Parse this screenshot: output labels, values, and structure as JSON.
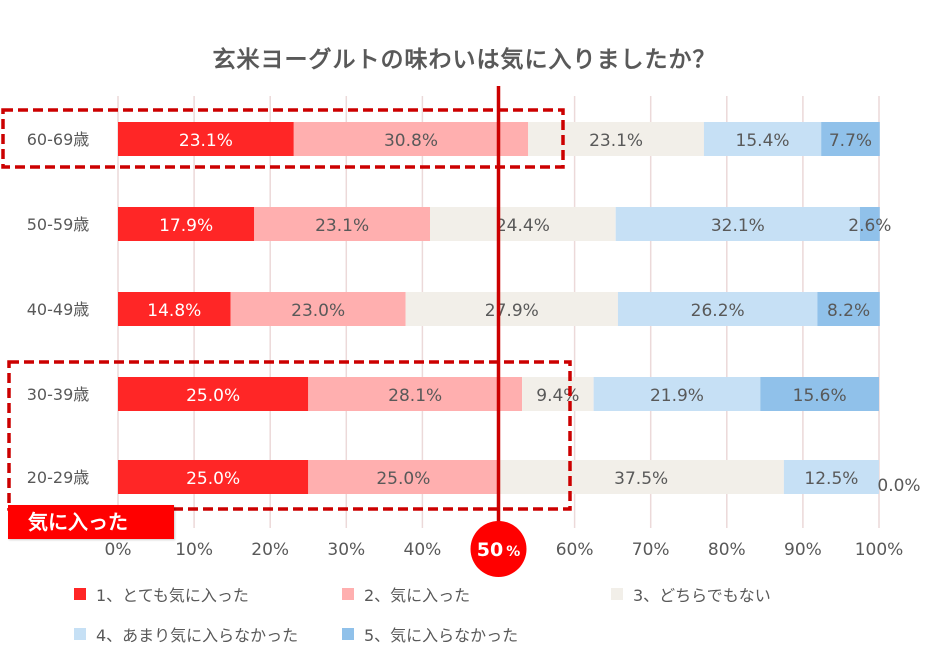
{
  "chart_data": {
    "type": "bar",
    "orientation": "horizontal",
    "stacked": true,
    "title": "玄米ヨーグルトの味わいは気に入りましたか？",
    "categories": [
      "60-69歳",
      "50-59歳",
      "40-49歳",
      "30-39歳",
      "20-29歳"
    ],
    "series": [
      {
        "name": "1、とても気に入った",
        "color": "#ff2626",
        "label_color": "#ffffff",
        "values": [
          23.1,
          17.9,
          14.8,
          25.0,
          25.0
        ],
        "labels": [
          "23.1%",
          "17.9%",
          "14.8%",
          "25.0%",
          "25.0%"
        ]
      },
      {
        "name": "2、気に入った",
        "color": "#ffafaf",
        "label_color": "#595959",
        "values": [
          30.8,
          23.1,
          23.0,
          28.1,
          25.0
        ],
        "labels": [
          "30.8%",
          "23.1%",
          "23.0%",
          "28.1%",
          "25.0%"
        ]
      },
      {
        "name": "3、どちらでもない",
        "color": "#f2efe9",
        "label_color": "#595959",
        "values": [
          23.1,
          24.4,
          27.9,
          9.4,
          37.5
        ],
        "labels": [
          "23.1%",
          "24.4%",
          "27.9%",
          "9.4%",
          "37.5%"
        ]
      },
      {
        "name": "4、あまり気に入らなかった",
        "color": "#c6e0f5",
        "label_color": "#595959",
        "values": [
          15.4,
          32.1,
          26.2,
          21.9,
          12.5
        ],
        "labels": [
          "15.4%",
          "32.1%",
          "26.2%",
          "21.9%",
          "12.5%"
        ]
      },
      {
        "name": "5、気に入らなかった",
        "color": "#90c1ea",
        "label_color": "#595959",
        "values": [
          7.7,
          2.6,
          8.2,
          15.6,
          0.0
        ],
        "labels": [
          "7.7%",
          "2.6%",
          "8.2%",
          "15.6%",
          "0.0%"
        ]
      }
    ],
    "xlim": [
      0,
      100
    ],
    "xticks": [
      "0%",
      "10%",
      "20%",
      "30%",
      "40%",
      "50%",
      "60%",
      "70%",
      "80%",
      "90%",
      "100%"
    ],
    "grid": true,
    "reference_line": {
      "value": 50,
      "label": "50%",
      "label_main": "50",
      "label_unit": "%",
      "color": "#cc0000"
    },
    "highlight_callout": "気に入った",
    "highlighted_categories": [
      "60-69歳",
      "30-39歳",
      "20-29歳"
    ]
  }
}
